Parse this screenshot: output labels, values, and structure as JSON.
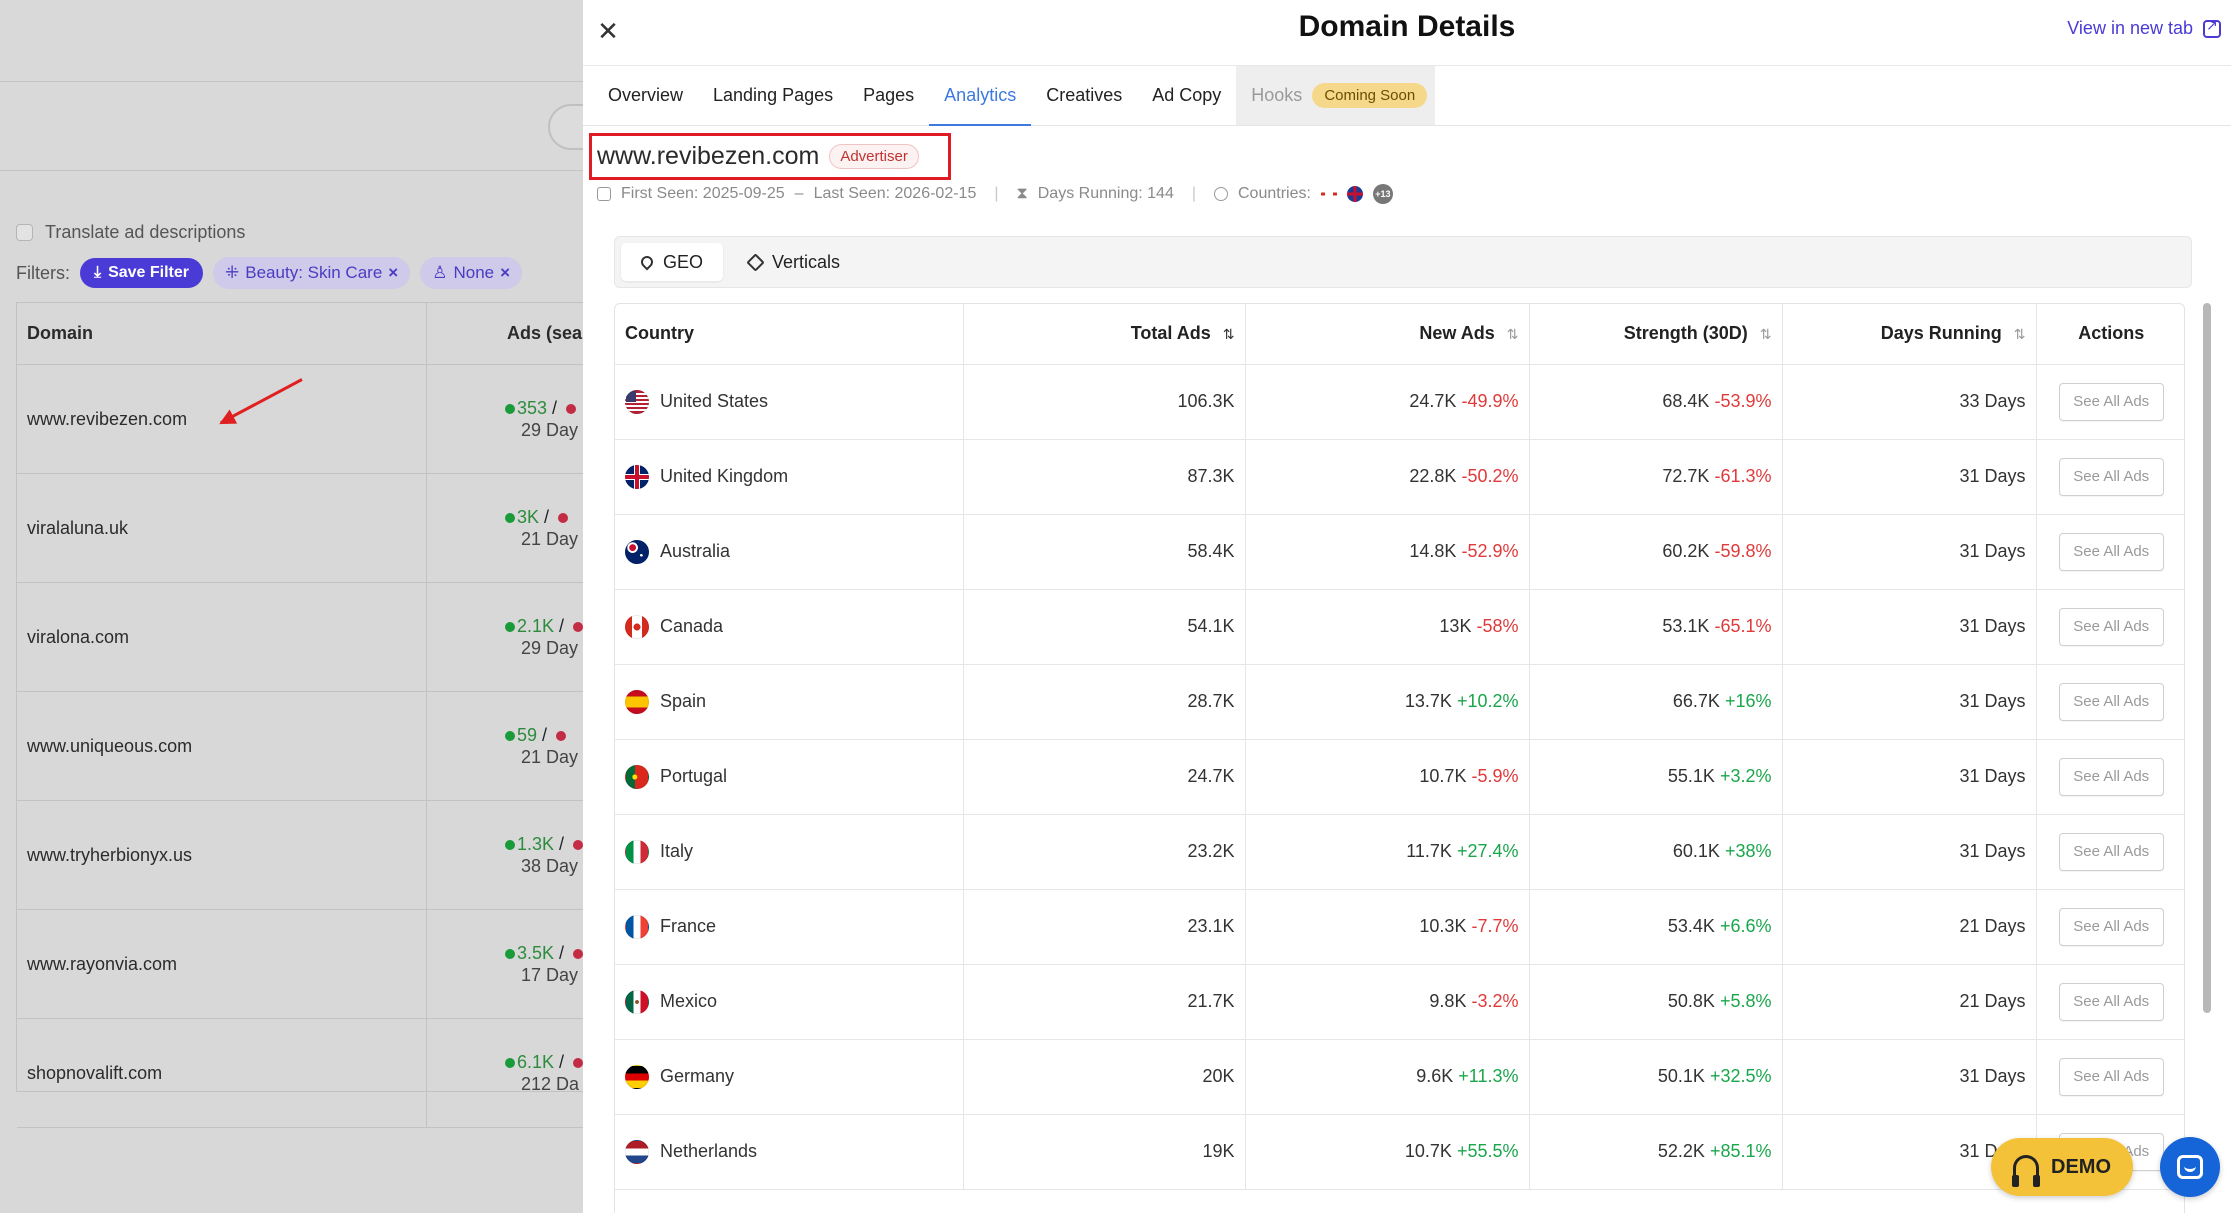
{
  "background": {
    "translate_label": "Translate ad descriptions",
    "filters_label": "Filters:",
    "save_filter": "Save Filter",
    "chips": [
      {
        "label": "Beauty: Skin Care",
        "icon": "category-icon"
      },
      {
        "label": "None",
        "icon": "user-icon"
      }
    ],
    "table": {
      "col_domain": "Domain",
      "col_ads": "Ads (sea",
      "rows": [
        {
          "domain": "www.revibezen.com",
          "ads": "353",
          "days": "29 Day"
        },
        {
          "domain": "viralaluna.uk",
          "ads": "3K",
          "days": "21 Day"
        },
        {
          "domain": "viralona.com",
          "ads": "2.1K",
          "days": "29 Day"
        },
        {
          "domain": "www.uniqueous.com",
          "ads": "59",
          "days": "21 Day"
        },
        {
          "domain": "www.tryherbionyx.us",
          "ads": "1.3K",
          "days": "38 Day"
        },
        {
          "domain": "www.rayonvia.com",
          "ads": "3.5K",
          "days": "17 Day"
        },
        {
          "domain": "shopnovalift.com",
          "ads": "6.1K",
          "days": "212 Da"
        }
      ]
    }
  },
  "drawer": {
    "title": "Domain Details",
    "view_new_tab": "View in new tab",
    "tabs": [
      {
        "label": "Overview",
        "active": false
      },
      {
        "label": "Landing Pages",
        "active": false
      },
      {
        "label": "Pages",
        "active": false
      },
      {
        "label": "Analytics",
        "active": true
      },
      {
        "label": "Creatives",
        "active": false
      },
      {
        "label": "Ad Copy",
        "active": false
      }
    ],
    "hooks_tab": {
      "label": "Hooks",
      "badge": "Coming Soon"
    },
    "domain": "www.revibezen.com",
    "advertiser_badge": "Advertiser",
    "meta": {
      "first_seen": "First Seen: 2025-09-25",
      "last_seen": "Last Seen: 2026-02-15",
      "days_running": "Days Running: 144",
      "countries_label": "Countries:",
      "more_countries": "+13"
    },
    "segment": {
      "geo": "GEO",
      "verticals": "Verticals"
    },
    "columns": {
      "country": "Country",
      "total_ads": "Total Ads",
      "new_ads": "New Ads",
      "strength": "Strength (30D)",
      "days_running": "Days Running",
      "actions": "Actions"
    },
    "rows": [
      {
        "country": "United States",
        "flag": "flag-us-icon",
        "total": "106.3K",
        "new": "24.7K",
        "new_change": "-49.9%",
        "strength": "68.4K",
        "strength_change": "-53.9%",
        "days": "33 Days",
        "action": "See All Ads"
      },
      {
        "country": "United Kingdom",
        "flag": "flag-uk-icon",
        "total": "87.3K",
        "new": "22.8K",
        "new_change": "-50.2%",
        "strength": "72.7K",
        "strength_change": "-61.3%",
        "days": "31 Days",
        "action": "See All Ads"
      },
      {
        "country": "Australia",
        "flag": "flag-au-icon",
        "total": "58.4K",
        "new": "14.8K",
        "new_change": "-52.9%",
        "strength": "60.2K",
        "strength_change": "-59.8%",
        "days": "31 Days",
        "action": "See All Ads"
      },
      {
        "country": "Canada",
        "flag": "flag-ca-icon",
        "total": "54.1K",
        "new": "13K",
        "new_change": "-58%",
        "strength": "53.1K",
        "strength_change": "-65.1%",
        "days": "31 Days",
        "action": "See All Ads"
      },
      {
        "country": "Spain",
        "flag": "flag-es-icon",
        "total": "28.7K",
        "new": "13.7K",
        "new_change": "+10.2%",
        "strength": "66.7K",
        "strength_change": "+16%",
        "days": "31 Days",
        "action": "See All Ads"
      },
      {
        "country": "Portugal",
        "flag": "flag-pt-icon",
        "total": "24.7K",
        "new": "10.7K",
        "new_change": "-5.9%",
        "strength": "55.1K",
        "strength_change": "+3.2%",
        "days": "31 Days",
        "action": "See All Ads"
      },
      {
        "country": "Italy",
        "flag": "flag-it-icon",
        "total": "23.2K",
        "new": "11.7K",
        "new_change": "+27.4%",
        "strength": "60.1K",
        "strength_change": "+38%",
        "days": "31 Days",
        "action": "See All Ads"
      },
      {
        "country": "France",
        "flag": "flag-fr-icon",
        "total": "23.1K",
        "new": "10.3K",
        "new_change": "-7.7%",
        "strength": "53.4K",
        "strength_change": "+6.6%",
        "days": "21 Days",
        "action": "See All Ads"
      },
      {
        "country": "Mexico",
        "flag": "flag-mx-icon",
        "total": "21.7K",
        "new": "9.8K",
        "new_change": "-3.2%",
        "strength": "50.8K",
        "strength_change": "+5.8%",
        "days": "21 Days",
        "action": "See All Ads"
      },
      {
        "country": "Germany",
        "flag": "flag-de-icon",
        "total": "20K",
        "new": "9.6K",
        "new_change": "+11.3%",
        "strength": "50.1K",
        "strength_change": "+32.5%",
        "days": "31 Days",
        "action": "See All Ads"
      },
      {
        "country": "Netherlands",
        "flag": "flag-nl-icon",
        "total": "19K",
        "new": "10.7K",
        "new_change": "+55.5%",
        "strength": "52.2K",
        "strength_change": "+85.1%",
        "days": "31 Days",
        "action": "See All Ads"
      }
    ],
    "demo_label": "DEMO"
  },
  "colors": {
    "accent": "#4b3bd6",
    "tab_active": "#3d7ae0",
    "negative": "#e03a3a",
    "positive": "#1aa64b",
    "annotation": "#e01b24"
  }
}
